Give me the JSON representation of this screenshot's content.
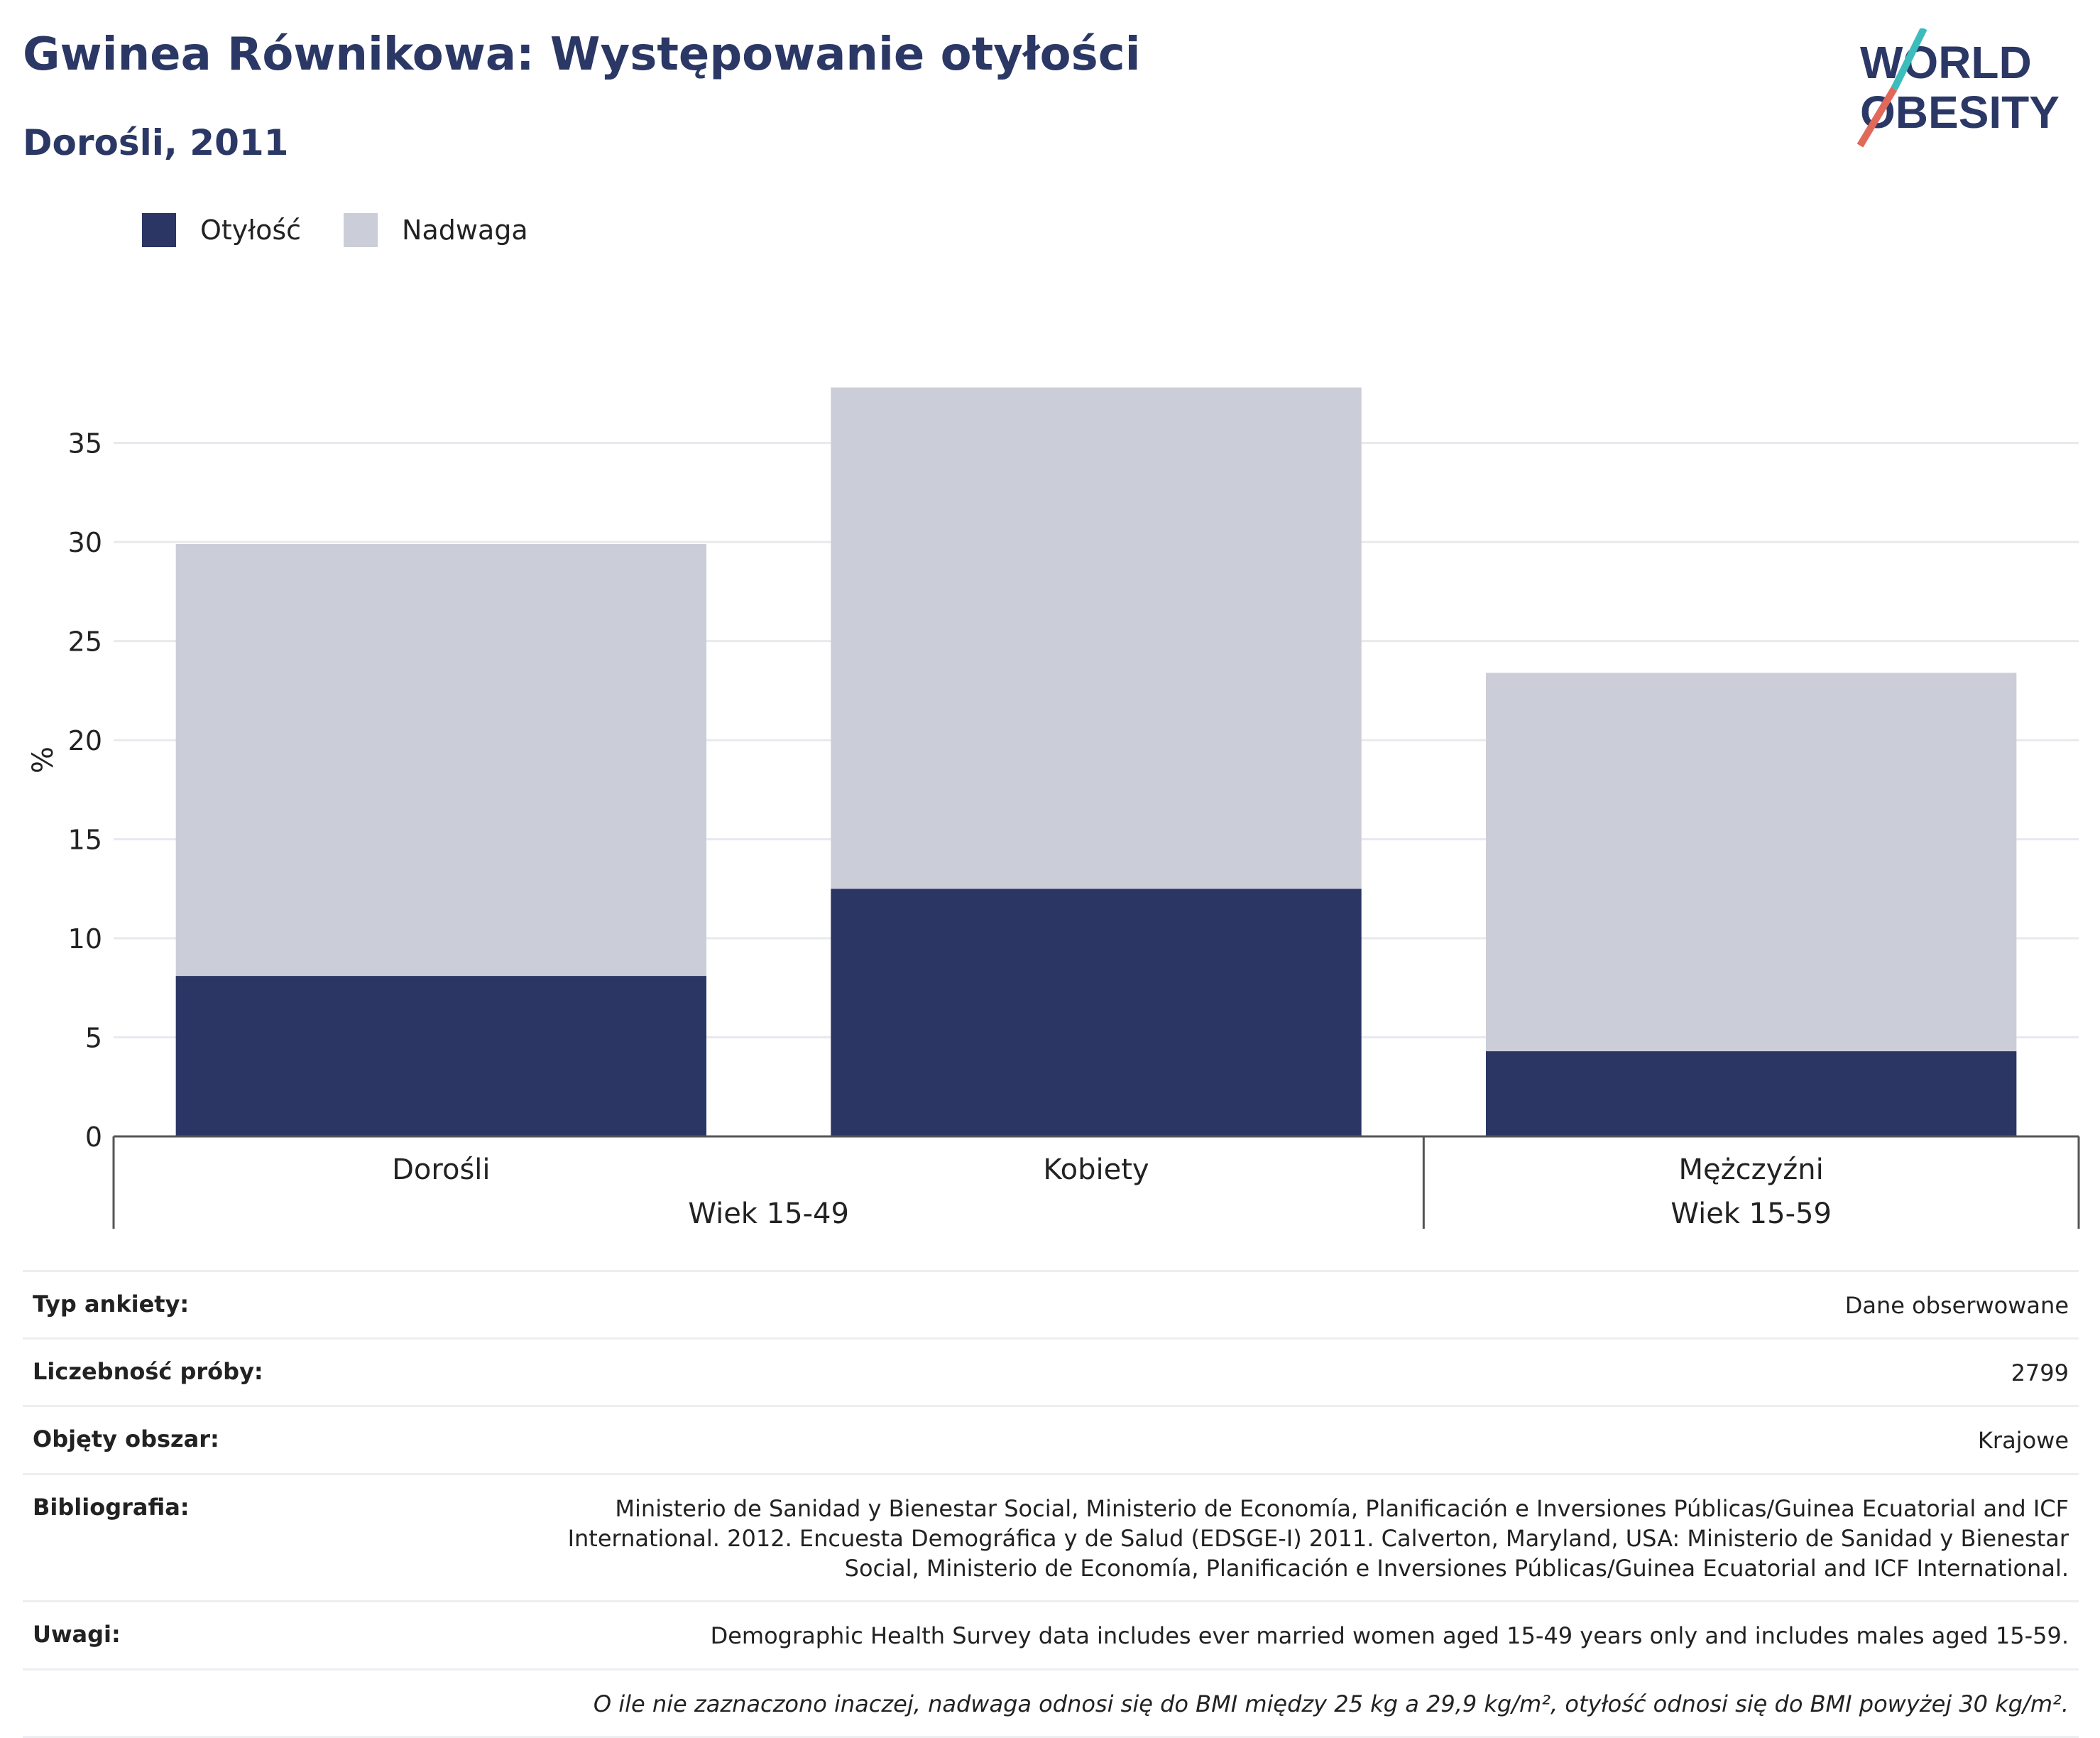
{
  "header": {
    "title": "Gwinea Równikowa: Występowanie otyłości",
    "subtitle": "Dorośli, 2011"
  },
  "logo": {
    "line1": "WORLD",
    "line2": "OBESITY"
  },
  "colors": {
    "obesity": "#2b3664",
    "overweight": "#cbcdd8",
    "title": "#2b3866",
    "logo_teal": "#3dbcbc",
    "logo_red": "#e0695a"
  },
  "chart_data": {
    "type": "bar",
    "stacked": true,
    "categories": [
      "Dorośli",
      "Kobiety",
      "Mężczyźni"
    ],
    "groups": [
      {
        "label": "Wiek 15-49",
        "categories": [
          "Dorośli",
          "Kobiety"
        ]
      },
      {
        "label": "Wiek 15-59",
        "categories": [
          "Mężczyźni"
        ]
      }
    ],
    "series": [
      {
        "name": "Otyłość",
        "values": [
          8.1,
          12.5,
          4.3
        ]
      },
      {
        "name": "Nadwaga",
        "values": [
          21.8,
          25.3,
          19.1
        ]
      }
    ],
    "ylabel": "%",
    "ylim": [
      0,
      38
    ],
    "yticks": [
      0,
      5,
      10,
      15,
      20,
      25,
      30,
      35
    ],
    "grid": true,
    "legend": "top-left"
  },
  "table": {
    "rows": [
      {
        "key": "Typ ankiety:",
        "value": "Dane obserwowane"
      },
      {
        "key": "Liczebność próby:",
        "value": "2799"
      },
      {
        "key": "Objęty obszar:",
        "value": "Krajowe"
      },
      {
        "key": "Bibliografia:",
        "value": "Ministerio de Sanidad y Bienestar Social, Ministerio de Economía, Planificación e Inversiones Públicas/Guinea Ecuatorial and ICF International. 2012. Encuesta Demográfica y de Salud (EDSGE-I) 2011. Calverton, Maryland, USA: Ministerio de Sanidad y Bienestar Social, Ministerio de Economía, Planificación e Inversiones Públicas/Guinea Ecuatorial and ICF International."
      },
      {
        "key": "Uwagi:",
        "value": "Demographic Health Survey data includes ever married women aged 15-49 years only and includes males aged 15-59."
      }
    ],
    "footnote": "O ile nie zaznaczono inaczej, nadwaga odnosi się do BMI między 25 kg a 29,9 kg/m², otyłość odnosi się do BMI powyżej 30 kg/m²."
  }
}
